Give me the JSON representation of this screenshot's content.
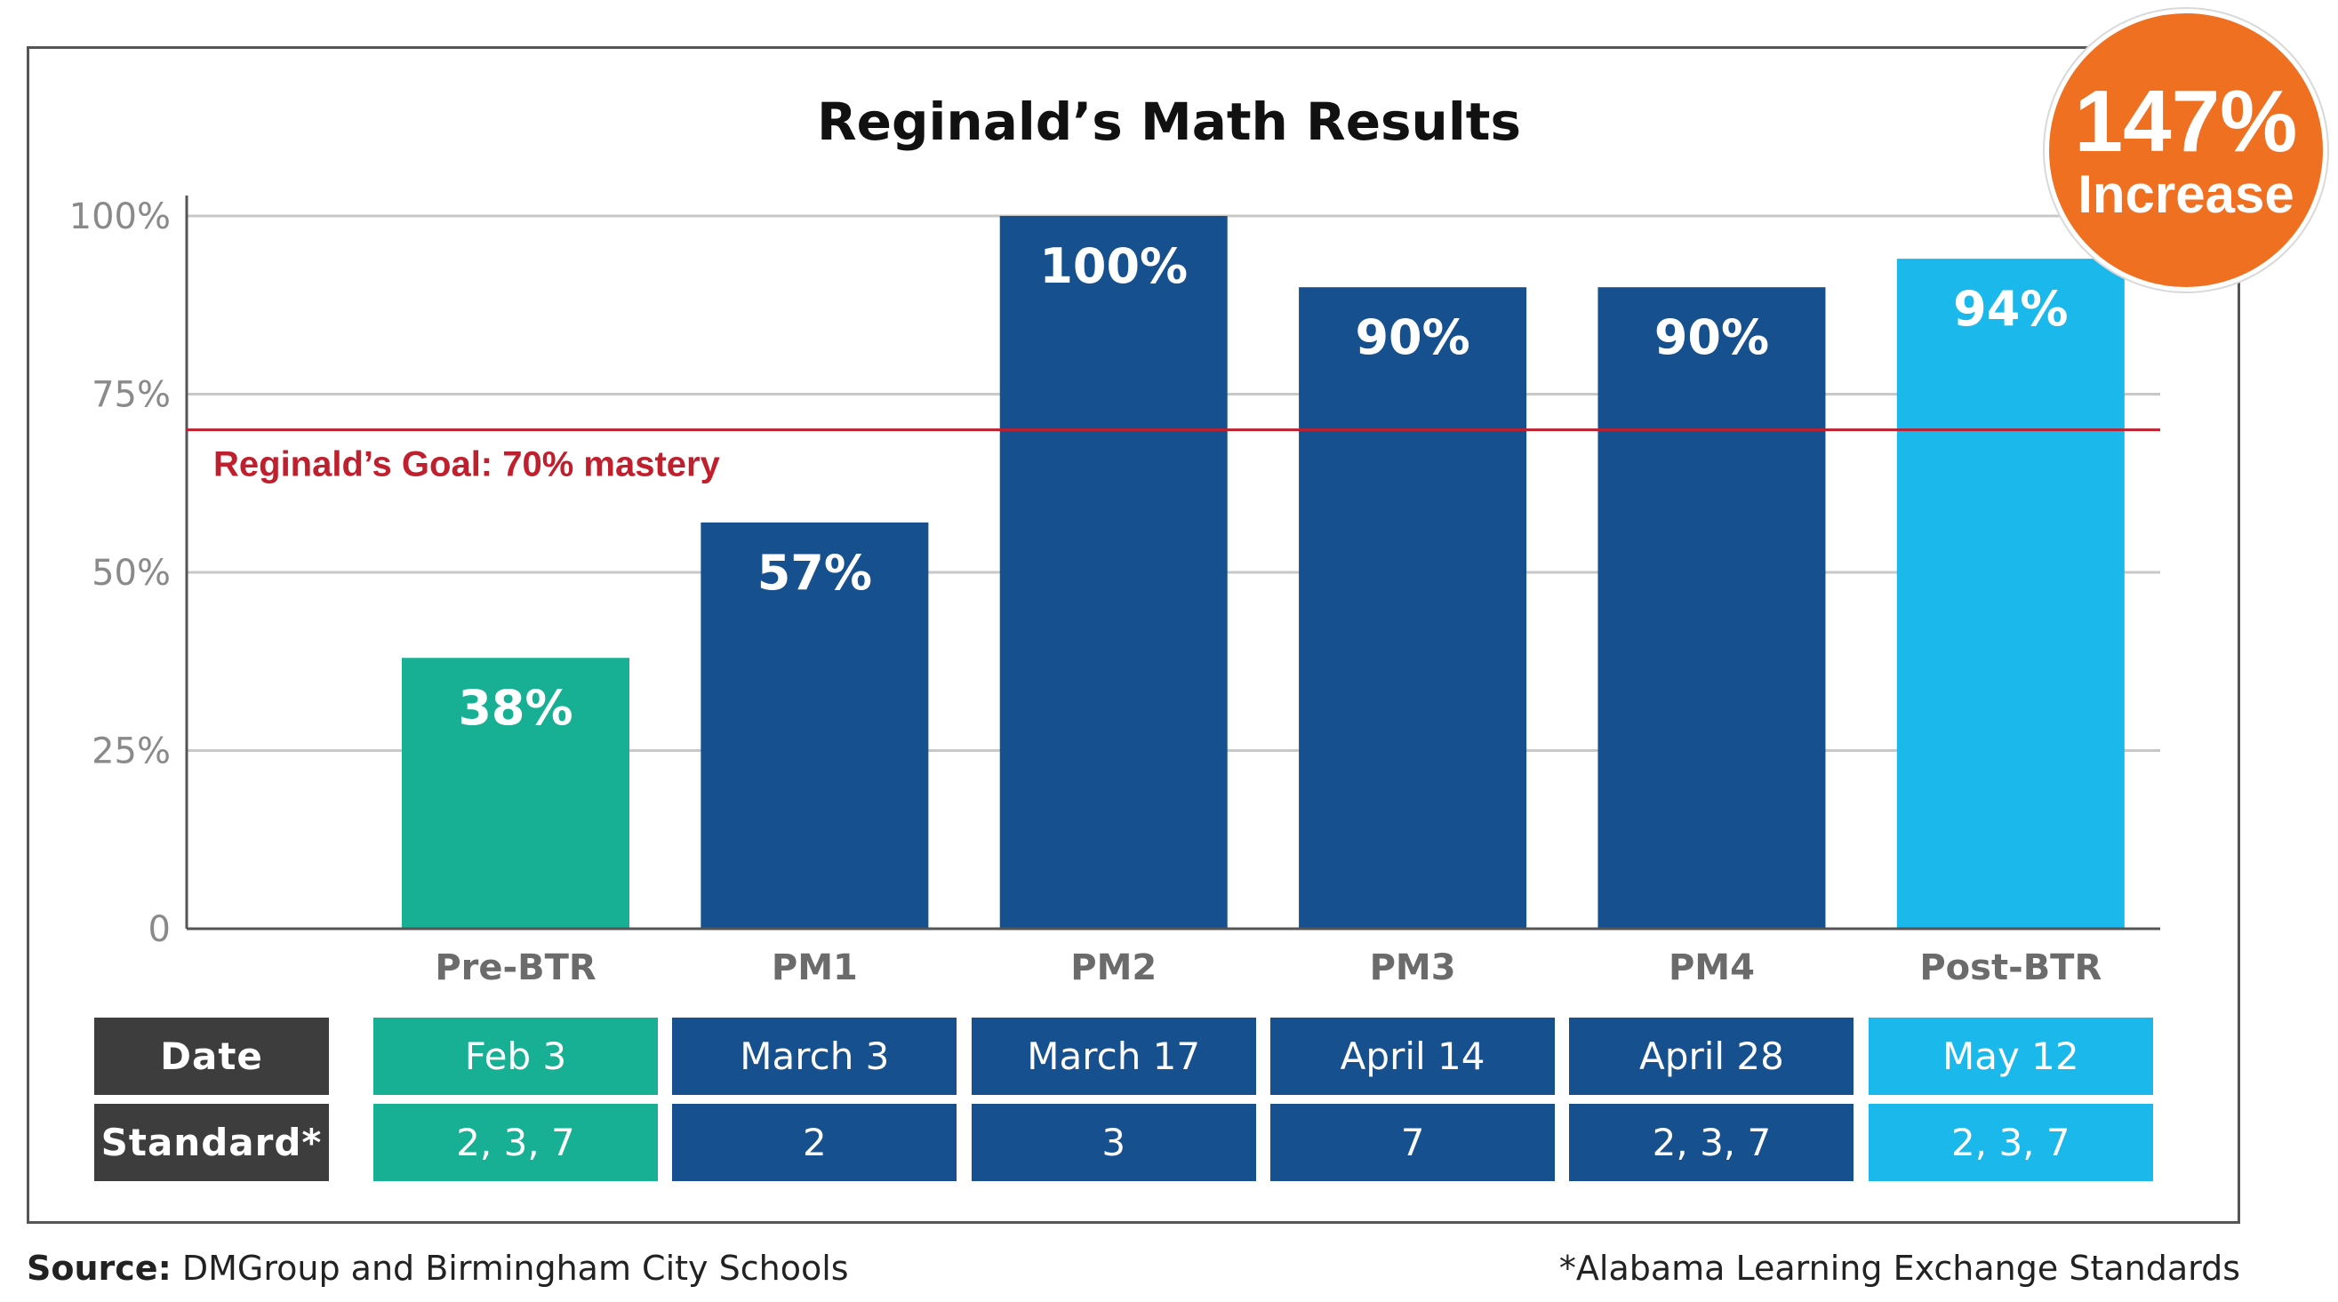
{
  "chart_data": {
    "type": "bar",
    "title": "Reginald’s Math Results",
    "categories": [
      "Pre-BTR",
      "PM1",
      "PM2",
      "PM3",
      "PM4",
      "Post-BTR"
    ],
    "values": [
      38,
      57,
      100,
      90,
      90,
      94
    ],
    "data_labels": [
      "38%",
      "57%",
      "100%",
      "90%",
      "90%",
      "94%"
    ],
    "colors": [
      "#17b094",
      "#17508e",
      "#17508e",
      "#17508e",
      "#17508e",
      "#1bb8ec"
    ],
    "ylim": [
      0,
      100
    ],
    "yticks": [
      0,
      25,
      50,
      75,
      100
    ],
    "ytick_labels": [
      "0",
      "25%",
      "50%",
      "75%",
      "100%"
    ],
    "grid": true,
    "goal_line": {
      "value": 70,
      "label": "Reginald’s Goal: 70% mastery",
      "color": "#c0202e"
    }
  },
  "table": {
    "row_headers": [
      "Date",
      "Standard*"
    ],
    "header_color": "#3d3d3d",
    "dates": [
      "Feb 3",
      "March 3",
      "March 17",
      "April 14",
      "April 28",
      "May 12"
    ],
    "standards": [
      "2, 3, 7",
      "2",
      "3",
      "7",
      "2, 3, 7",
      "2, 3, 7"
    ]
  },
  "badge": {
    "value": "147%",
    "label": "Increase",
    "color": "#f07022"
  },
  "footer": {
    "source_label": "Source:",
    "source_text": " DMGroup and Birmingham City Schools",
    "note": "*Alabama Learning Exchange Standards"
  }
}
